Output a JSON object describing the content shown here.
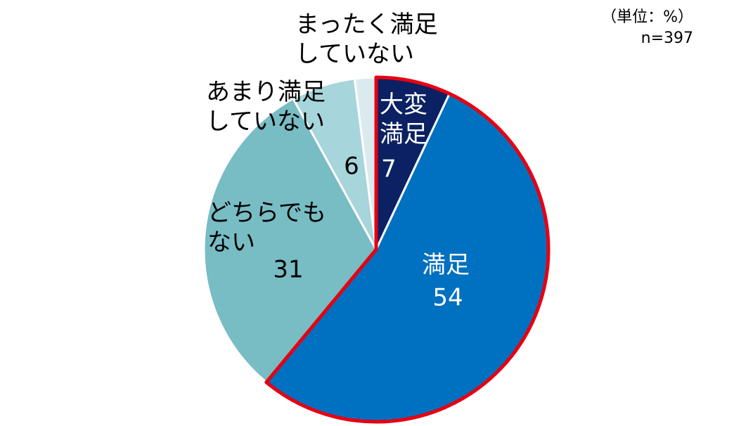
{
  "chart_data": {
    "type": "pie",
    "unit_note": "（単位：%）",
    "n_note": "n=397",
    "categories": [
      "大変満足",
      "満足",
      "どちらでもない",
      "あまり満足していない",
      "まったく満足していない"
    ],
    "values": [
      7,
      54,
      31,
      6,
      2
    ],
    "value_labels": [
      "7",
      "54",
      "31",
      "6",
      null
    ],
    "colors": [
      "#0b2163",
      "#0070c0",
      "#78bcc4",
      "#a6d5db",
      "#dbeaee"
    ],
    "highlight_color": "#e60012"
  }
}
